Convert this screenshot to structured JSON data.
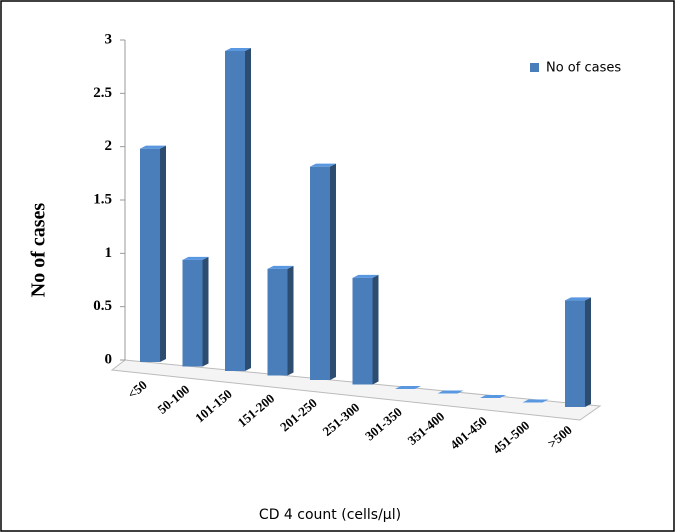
{
  "chart_data": {
    "type": "bar3d",
    "categories": [
      "<50",
      "50-100",
      "101-150",
      "151-200",
      "201-250",
      "251-300",
      "301-350",
      "351-400",
      "401-450",
      "451-500",
      ">500"
    ],
    "series": [
      {
        "name": "No of cases",
        "color": "#4a7ebb",
        "values": [
          2,
          1,
          3,
          1,
          2,
          1,
          0,
          0,
          0,
          0,
          1
        ]
      }
    ],
    "ylim": [
      0,
      3
    ],
    "yticks": [
      0,
      0.5,
      1,
      1.5,
      2,
      2.5,
      3
    ],
    "ylabel": "No of cases",
    "xlabel": "CD 4 count (cells/µl)",
    "legend": "upper right"
  }
}
